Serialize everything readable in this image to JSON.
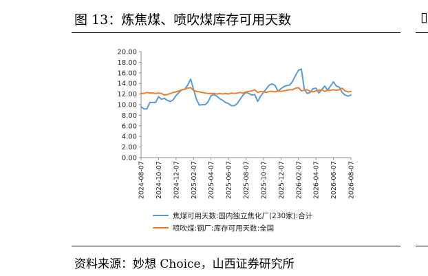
{
  "figure": {
    "title": "图 13：炼焦煤、喷吹煤库存可用天数",
    "source": "资料来源：妙想 Choice，山西证券研究所"
  },
  "chart_data": {
    "type": "line",
    "title": "",
    "xlabel": "",
    "ylabel": "",
    "ylim": [
      0,
      20
    ],
    "yticks": [
      "20.00",
      "18.00",
      "16.00",
      "14.00",
      "12.00",
      "10.00",
      "8.00",
      "6.00",
      "4.00",
      "2.00",
      "0.00"
    ],
    "xticks": [
      "2024-08-07",
      "2024-10-07",
      "2024-12-07",
      "2025-02-07",
      "2025-04-07",
      "2025-06-07",
      "2025-08-07",
      "2025-10-07",
      "2025-12-07",
      "2026-02-07",
      "2026-04-07",
      "2026-06-07",
      "2026-08-07"
    ],
    "grid": false,
    "legend_position": "bottom",
    "series": [
      {
        "name": "焦煤可用天数:国内独立焦化厂(230家):合计",
        "color": "#5B9BD5",
        "values": [
          9.6,
          9.2,
          9.2,
          10.4,
          10.4,
          10.4,
          11.5,
          11.0,
          11.2,
          10.8,
          10.6,
          10.9,
          11.7,
          12.3,
          12.8,
          12.9,
          13.7,
          14.8,
          12.9,
          11.0,
          9.9,
          10.0,
          10.0,
          10.5,
          11.7,
          11.9,
          11.6,
          11.1,
          10.8,
          10.4,
          10.2,
          9.8,
          9.8,
          10.2,
          11.0,
          11.8,
          12.3,
          12.1,
          11.8,
          11.9,
          10.6,
          11.6,
          12.3,
          13.0,
          13.7,
          13.9,
          13.6,
          12.5,
          13.0,
          13.4,
          13.6,
          13.7,
          14.4,
          15.5,
          16.5,
          16.7,
          12.9,
          12.1,
          12.3,
          13.0,
          13.1,
          12.2,
          12.8,
          13.5,
          12.7,
          13.5,
          14.3,
          13.5,
          13.3,
          12.3,
          11.8,
          11.6,
          11.8
        ]
      },
      {
        "name": "喷吹煤:钢厂:库存可用天数:全国",
        "color": "#ED7D31",
        "values": [
          12.1,
          12.1,
          12.3,
          12.2,
          12.2,
          12.1,
          12.2,
          12.1,
          11.8,
          11.9,
          12.1,
          12.3,
          12.4,
          12.6,
          12.8,
          12.9,
          13.1,
          13.2,
          12.7,
          12.5,
          12.4,
          12.3,
          12.2,
          12.1,
          12.1,
          12.1,
          12.0,
          12.1,
          12.0,
          12.1,
          12.0,
          12.2,
          12.1,
          12.2,
          12.3,
          12.2,
          12.4,
          12.5,
          12.6,
          12.8,
          12.3,
          12.5,
          12.4,
          12.3,
          12.5,
          12.5,
          12.4,
          12.6,
          12.5,
          12.6,
          12.7,
          12.8,
          12.8,
          13.1,
          13.2,
          12.6,
          12.7,
          12.8,
          12.5,
          12.4,
          12.6,
          12.7,
          12.8,
          12.5,
          12.7,
          12.7,
          12.8,
          12.7,
          12.8,
          13.1,
          12.6,
          12.4,
          12.5
        ]
      }
    ]
  }
}
